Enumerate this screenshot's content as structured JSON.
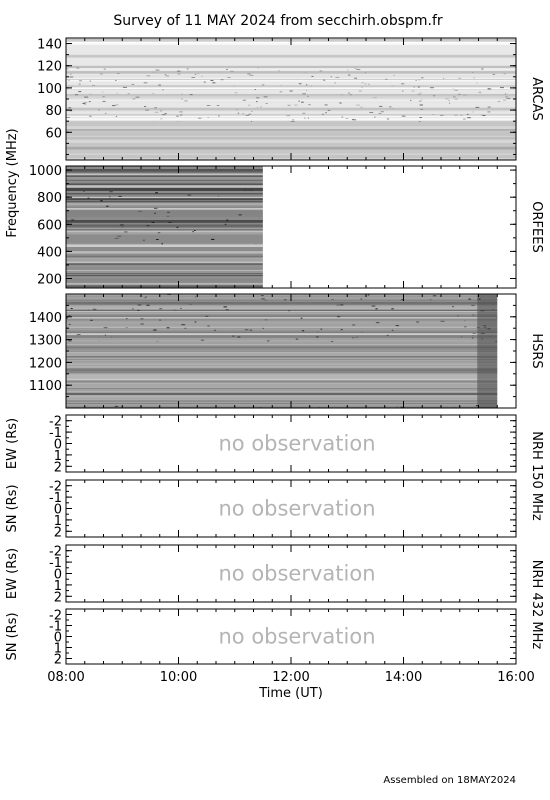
{
  "title": "Survey of 11 MAY 2024 from secchirh.obspm.fr",
  "footer": "Assembled on 18MAY2024",
  "colors": {
    "axis": "#000000",
    "no_observation": "#b4b4b4",
    "background": "#ffffff"
  },
  "chart_data": [
    {
      "type": "heatmap",
      "instrument": "ARCAS",
      "ylabel": "Frequency (MHz)",
      "ylim": [
        145,
        35
      ],
      "yticks": [
        "60",
        "80",
        "100",
        "120",
        "140"
      ],
      "data_extent_x": [
        "08:00",
        "16:00"
      ],
      "colormap": "grayscale"
    },
    {
      "type": "heatmap",
      "instrument": "ORFEES",
      "ylim": [
        1030,
        130
      ],
      "yticks": [
        "200",
        "400",
        "600",
        "800",
        "1000"
      ],
      "data_extent_x": [
        "08:00",
        "11:30"
      ],
      "colormap": "grayscale"
    },
    {
      "type": "heatmap",
      "instrument": "HSRS",
      "ylim": [
        1500,
        1000
      ],
      "yticks": [
        "1100",
        "1200",
        "1300",
        "1400"
      ],
      "data_extent_x": [
        "08:00",
        "15:40"
      ],
      "colormap": "grayscale"
    },
    {
      "type": "heatmap",
      "instrument": "NRH 150 MHz",
      "ylabel": "EW (Rs)",
      "ylim": [
        -2.5,
        2.5
      ],
      "yticks": [
        "2",
        "1",
        "0",
        "-1",
        "-2"
      ],
      "annotation": "no observation"
    },
    {
      "type": "heatmap",
      "ylabel": "SN (Rs)",
      "ylim": [
        -2.5,
        2.5
      ],
      "yticks": [
        "2",
        "1",
        "0",
        "-1",
        "-2"
      ],
      "annotation": "no observation"
    },
    {
      "type": "heatmap",
      "instrument": "NRH 432 MHz",
      "ylabel": "EW (Rs)",
      "ylim": [
        -2.5,
        2.5
      ],
      "yticks": [
        "2",
        "1",
        "0",
        "-1",
        "-2"
      ],
      "annotation": "no observation"
    },
    {
      "type": "heatmap",
      "ylabel": "SN (Rs)",
      "ylim": [
        -2.5,
        2.5
      ],
      "yticks": [
        "2",
        "1",
        "0",
        "-1",
        "-2"
      ],
      "annotation": "no observation"
    }
  ],
  "x_axis": {
    "label": "Time (UT)",
    "range": [
      "08:00",
      "16:00"
    ],
    "ticks": [
      "08:00",
      "10:00",
      "12:00",
      "14:00",
      "16:00"
    ]
  }
}
